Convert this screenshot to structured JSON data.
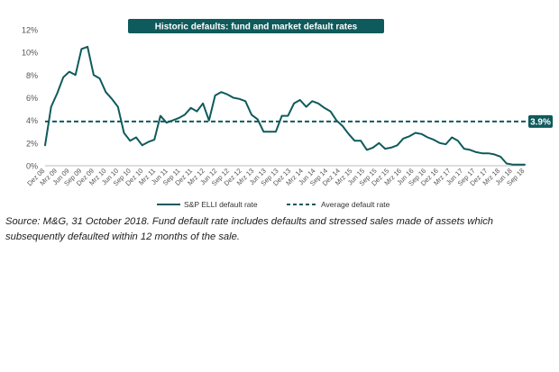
{
  "chart_data": {
    "type": "line",
    "title": "Historic defaults: fund and market default rates",
    "y_tick_labels": [
      "0%",
      "2%",
      "4%",
      "6%",
      "8%",
      "10%",
      "12%"
    ],
    "y_ticks": [
      0,
      2,
      4,
      6,
      8,
      10,
      12
    ],
    "ylim": [
      0,
      12
    ],
    "x_tick_labels": [
      "Dez 08",
      "Mrz 09",
      "Jun 09",
      "Sep 09",
      "Dez 09",
      "Mrz 10",
      "Jun 10",
      "Sep 10",
      "Dez 10",
      "Mrz 11",
      "Jun 11",
      "Sep 11",
      "Dez 11",
      "Mrz 12",
      "Jun 12",
      "Sep 12",
      "Dez 12",
      "Mrz 13",
      "Jun 13",
      "Sep 13",
      "Dez 13",
      "Mrz 14",
      "Jun 14",
      "Sep 14",
      "Dez 14",
      "Mrz 15",
      "Jun 15",
      "Sep 15",
      "Dez 15",
      "Mrz 16",
      "Jun 16",
      "Sep 16",
      "Dez 16",
      "Mrz 17",
      "Jun 17",
      "Sep 17",
      "Dez 17",
      "Mrz 18",
      "Jun 18",
      "Sep 18"
    ],
    "grid": false,
    "legend_position": "bottom",
    "series": [
      {
        "name": "S&P ELLI default rate",
        "style": "solid",
        "color": "#0f5a5c",
        "values": [
          1.8,
          5.2,
          6.4,
          7.8,
          8.3,
          8.0,
          10.3,
          10.5,
          8.0,
          7.7,
          6.5,
          5.9,
          5.2,
          2.9,
          2.2,
          2.5,
          1.8,
          2.1,
          2.3,
          4.4,
          3.8,
          4.0,
          4.2,
          4.5,
          5.1,
          4.8,
          5.5,
          4.0,
          6.2,
          6.5,
          6.3,
          6.0,
          5.9,
          5.7,
          4.5,
          4.1,
          3.0,
          3.0,
          3.0,
          4.4,
          4.4,
          5.5,
          5.8,
          5.2,
          5.7,
          5.5,
          5.1,
          4.8,
          4.0,
          3.5,
          2.8,
          2.2,
          2.2,
          1.4,
          1.6,
          2.0,
          1.5,
          1.6,
          1.8,
          2.4,
          2.6,
          2.9,
          2.8,
          2.5,
          2.3,
          2.0,
          1.9,
          2.5,
          2.2,
          1.5,
          1.4,
          1.2,
          1.1,
          1.1,
          1.0,
          0.8,
          0.2,
          0.1,
          0.1,
          0.1
        ]
      },
      {
        "name": "Average default rate",
        "style": "dashed",
        "color": "#0f5a5c",
        "value": 3.9
      }
    ],
    "annotation": "3.9%"
  },
  "source_note": "Source: M&G, 31 October 2018. Fund default rate includes defaults and stressed sales made of assets which subsequently defaulted within 12 months of the sale.",
  "colors": {
    "accent": "#0f5a5c",
    "axis_text": "#555555",
    "baseline": "#bdbdbd"
  }
}
